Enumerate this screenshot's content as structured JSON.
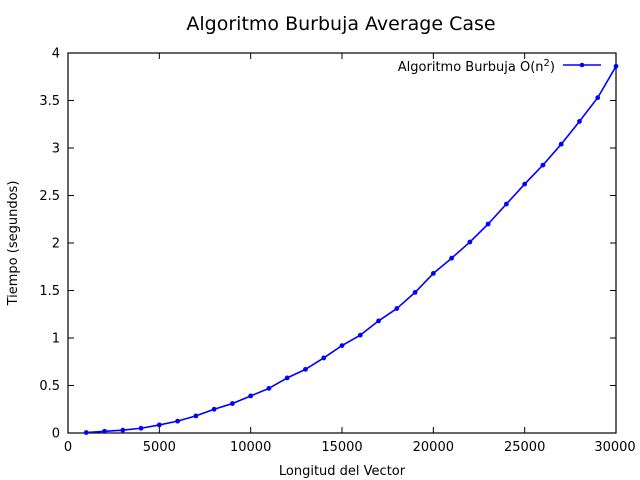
{
  "chart_data": {
    "type": "line",
    "title": "Algoritmo Burbuja Average Case",
    "xlabel": "Longitud del Vector",
    "ylabel": "Tiempo (segundos)",
    "xlim": [
      0,
      30000
    ],
    "ylim": [
      0,
      4
    ],
    "xticks": [
      0,
      5000,
      10000,
      15000,
      20000,
      25000,
      30000
    ],
    "xtick_labels": [
      "0",
      "5000",
      "10000",
      "15000",
      "20000",
      "25000",
      "30000"
    ],
    "yticks": [
      0,
      0.5,
      1,
      1.5,
      2,
      2.5,
      3,
      3.5,
      4
    ],
    "ytick_labels": [
      "0",
      "0.5",
      "1",
      "1.5",
      "2",
      "2.5",
      "3",
      "3.5",
      "4"
    ],
    "grid": false,
    "legend_position": "top-right",
    "series": [
      {
        "name": "Algoritmo Burbuja O(n2)",
        "legend_base": "Algoritmo Burbuja O(n",
        "legend_sup": "2",
        "legend_tail": ")",
        "color": "#0000ff",
        "x": [
          1000,
          2000,
          3000,
          4000,
          5000,
          6000,
          7000,
          8000,
          9000,
          10000,
          11000,
          12000,
          13000,
          14000,
          15000,
          16000,
          17000,
          18000,
          19000,
          20000,
          21000,
          22000,
          23000,
          24000,
          25000,
          26000,
          27000,
          28000,
          29000,
          30000
        ],
        "y": [
          0.005,
          0.018,
          0.03,
          0.05,
          0.085,
          0.125,
          0.18,
          0.25,
          0.31,
          0.39,
          0.47,
          0.58,
          0.67,
          0.79,
          0.92,
          1.03,
          1.18,
          1.31,
          1.48,
          1.68,
          1.84,
          2.01,
          2.2,
          2.41,
          2.62,
          2.82,
          3.04,
          3.28,
          3.53,
          3.86
        ]
      }
    ]
  }
}
